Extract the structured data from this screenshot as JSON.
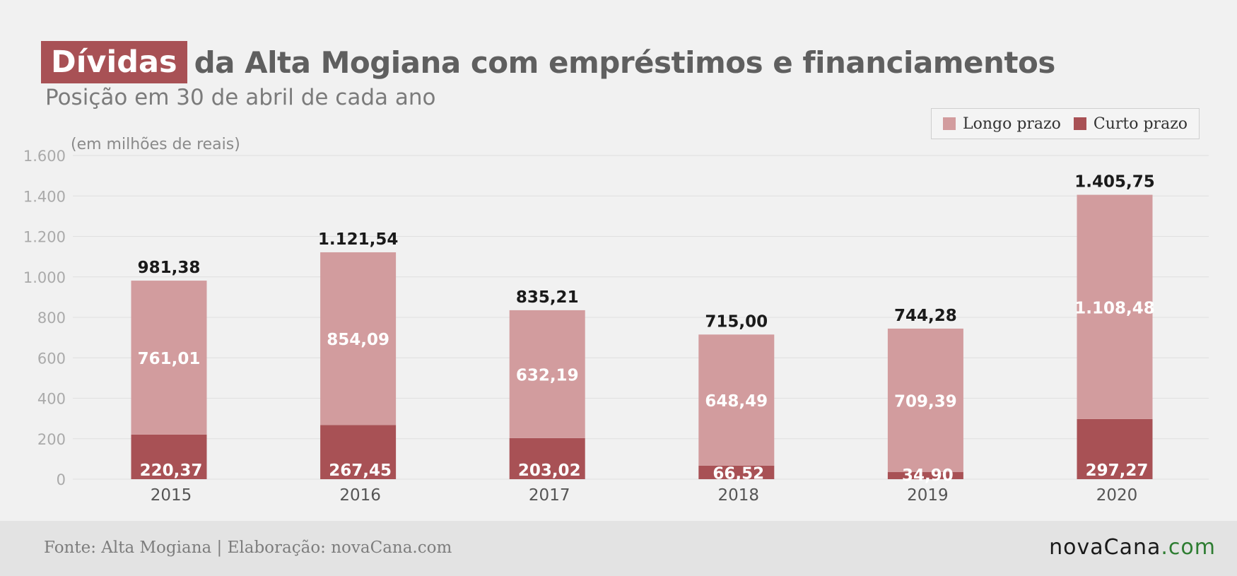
{
  "header": {
    "title_highlight": "Dívidas",
    "title_rest": "da Alta Mogiana com empréstimos e financiamentos",
    "subtitle": "Posição em 30 de abril de cada ano"
  },
  "colors": {
    "longo_prazo": "#d29c9e",
    "curto_prazo": "#a85155",
    "grid": "#e0e0e0",
    "tick_label": "#aaaaaa",
    "category_label": "#555555",
    "total_label": "#1a1a1a",
    "segment_label": "#ffffff"
  },
  "chart_data": {
    "type": "bar",
    "stacked": true,
    "unit_label": "(em milhões de reais)",
    "categories": [
      "2015",
      "2016",
      "2017",
      "2018",
      "2019",
      "2020"
    ],
    "series": [
      {
        "name": "Curto prazo",
        "values": [
          220.37,
          267.45,
          203.02,
          66.52,
          34.9,
          297.27
        ],
        "labels": [
          "220,37",
          "267,45",
          "203,02",
          "66,52",
          "34,90",
          "297,27"
        ]
      },
      {
        "name": "Longo prazo",
        "values": [
          761.01,
          854.09,
          632.19,
          648.49,
          709.39,
          1108.48
        ],
        "labels": [
          "761,01",
          "854,09",
          "632,19",
          "648,49",
          "709,39",
          "1.108,48"
        ]
      }
    ],
    "totals": [
      981.38,
      1121.54,
      835.21,
      715.0,
      744.28,
      1405.75
    ],
    "total_labels": [
      "981,38",
      "1.121,54",
      "835,21",
      "715,00",
      "744,28",
      "1.405,75"
    ],
    "ylim": [
      0,
      1600
    ],
    "yticks": [
      0,
      200,
      400,
      600,
      800,
      1000,
      1200,
      1400,
      1600
    ],
    "ytick_labels": [
      "0",
      "200",
      "400",
      "600",
      "800",
      "1.000",
      "1.200",
      "1.400",
      "1.600"
    ],
    "grid": true,
    "legend": {
      "position": "top-right",
      "order": [
        "Longo prazo",
        "Curto prazo"
      ]
    }
  },
  "footer": {
    "source": "Fonte: Alta Mogiana | Elaboração: novaCana.com",
    "logo_main": "novaCana",
    "logo_suffix": ".com"
  }
}
